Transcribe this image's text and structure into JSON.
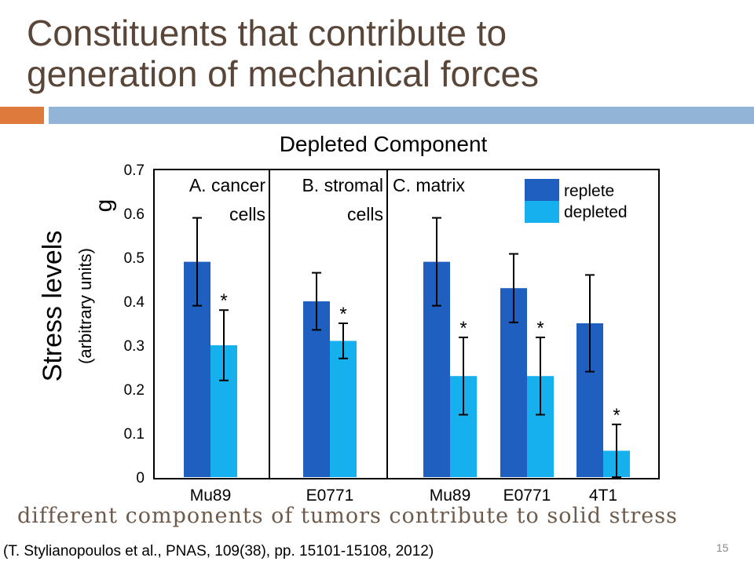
{
  "slide": {
    "title_line1": "Constituents that contribute to",
    "title_line2": "generation of mechanical forces",
    "footer": "different components of tumors contribute to solid stress",
    "citation": "(T. Stylianopoulos et al., PNAS, 109(38), pp. 15101-15108, 2012)",
    "page_number": "15"
  },
  "chart_data": {
    "type": "bar",
    "title": "Depleted Component",
    "ylabel": "Stress levels",
    "ylabel_sub": "(arbitrary units)",
    "ylabel_stray": "g",
    "ylim": [
      0,
      0.7
    ],
    "yticks": [
      "0",
      "0.1",
      "0.2",
      "0.3",
      "0.4",
      "0.5",
      "0.6",
      "0.7"
    ],
    "panels": [
      {
        "label_line1": "A. cancer",
        "label_line2": "cells"
      },
      {
        "label_line1": "B. stromal",
        "label_line2": "cells"
      },
      {
        "label_line1": "C. matrix",
        "label_line2": ""
      }
    ],
    "categories": [
      "Mu89",
      "E0771",
      "Mu89",
      "E0771",
      "4T1"
    ],
    "series": [
      {
        "name": "replete",
        "color": "#1f5fbf",
        "values": [
          0.49,
          0.4,
          0.49,
          0.43,
          0.35
        ],
        "errors": [
          0.1,
          0.065,
          0.1,
          0.078,
          0.11
        ]
      },
      {
        "name": "depleted",
        "color": "#17b0ef",
        "values": [
          0.3,
          0.31,
          0.23,
          0.23,
          0.06
        ],
        "errors": [
          0.08,
          0.04,
          0.088,
          0.088,
          0.06
        ]
      }
    ],
    "significance_marker": "*",
    "legend_position": "top-right",
    "grid": false
  }
}
